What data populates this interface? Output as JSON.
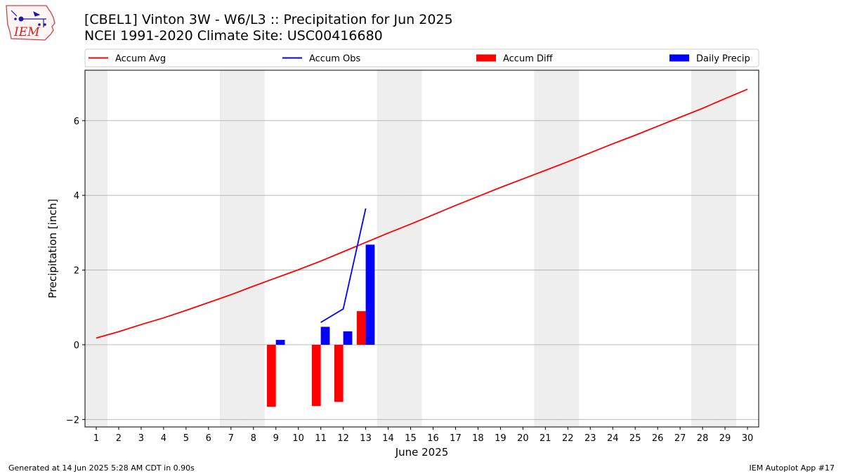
{
  "header": {
    "title_line1": "[CBEL1] Vinton 3W - W6/L3 :: Precipitation for Jun 2025",
    "title_line2": "NCEI 1991-2020 Climate Site: USC00416680",
    "logo_text": "IEM"
  },
  "footer": {
    "left": "Generated at 14 Jun 2025 5:28 AM CDT in 0.90s",
    "right": "IEM Autoplot App #17"
  },
  "colors": {
    "accum_avg": "#ff0000",
    "accum_obs": "#0000ff",
    "accum_diff": "#ff0000",
    "daily_precip": "#0000ff",
    "weekend_band": "#eeeeee",
    "grid": "#b0b0b0"
  },
  "chart_data": {
    "type": "bar",
    "xlabel": "June 2025",
    "ylabel": "Precipitation [inch]",
    "xlim": [
      0.5,
      30.5
    ],
    "ylim": [
      -2.2,
      7.35
    ],
    "x_ticks": [
      1,
      2,
      3,
      4,
      5,
      6,
      7,
      8,
      9,
      10,
      11,
      12,
      13,
      14,
      15,
      16,
      17,
      18,
      19,
      20,
      21,
      22,
      23,
      24,
      25,
      26,
      27,
      28,
      29,
      30
    ],
    "y_ticks": [
      -2,
      0,
      2,
      4,
      6
    ],
    "grid": "y",
    "legend_position": "top",
    "weekend_days": [
      1,
      7,
      8,
      14,
      15,
      21,
      22,
      28,
      29
    ],
    "legend": [
      {
        "name": "Accum Avg",
        "kind": "line",
        "color": "#ff0000"
      },
      {
        "name": "Accum Obs",
        "kind": "line",
        "color": "#0000ff"
      },
      {
        "name": "Accum Diff",
        "kind": "bar",
        "color": "#ff0000"
      },
      {
        "name": "Daily Precip",
        "kind": "bar",
        "color": "#0000ff"
      }
    ],
    "series": [
      {
        "name": "Accum Avg",
        "type": "line",
        "x": [
          1,
          2,
          3,
          4,
          5,
          6,
          7,
          8,
          9,
          10,
          11,
          12,
          13,
          14,
          15,
          16,
          17,
          18,
          19,
          20,
          21,
          22,
          23,
          24,
          25,
          26,
          27,
          28,
          29,
          30
        ],
        "values": [
          0.18,
          0.35,
          0.54,
          0.72,
          0.92,
          1.13,
          1.34,
          1.57,
          1.79,
          2.01,
          2.24,
          2.49,
          2.74,
          2.99,
          3.23,
          3.48,
          3.73,
          3.97,
          4.21,
          4.44,
          4.67,
          4.9,
          5.14,
          5.38,
          5.61,
          5.85,
          6.09,
          6.33,
          6.59,
          6.84
        ]
      },
      {
        "name": "Accum Obs",
        "type": "line",
        "x": [
          11,
          12,
          13
        ],
        "values": [
          0.6,
          0.96,
          3.65
        ]
      },
      {
        "name": "Accum Diff",
        "type": "bar",
        "x": [
          9,
          11,
          12,
          13
        ],
        "values": [
          -1.66,
          -1.64,
          -1.53,
          0.9
        ]
      },
      {
        "name": "Daily Precip",
        "type": "bar",
        "x": [
          9,
          11,
          12,
          13
        ],
        "values": [
          0.13,
          0.48,
          0.36,
          2.68
        ]
      }
    ]
  }
}
